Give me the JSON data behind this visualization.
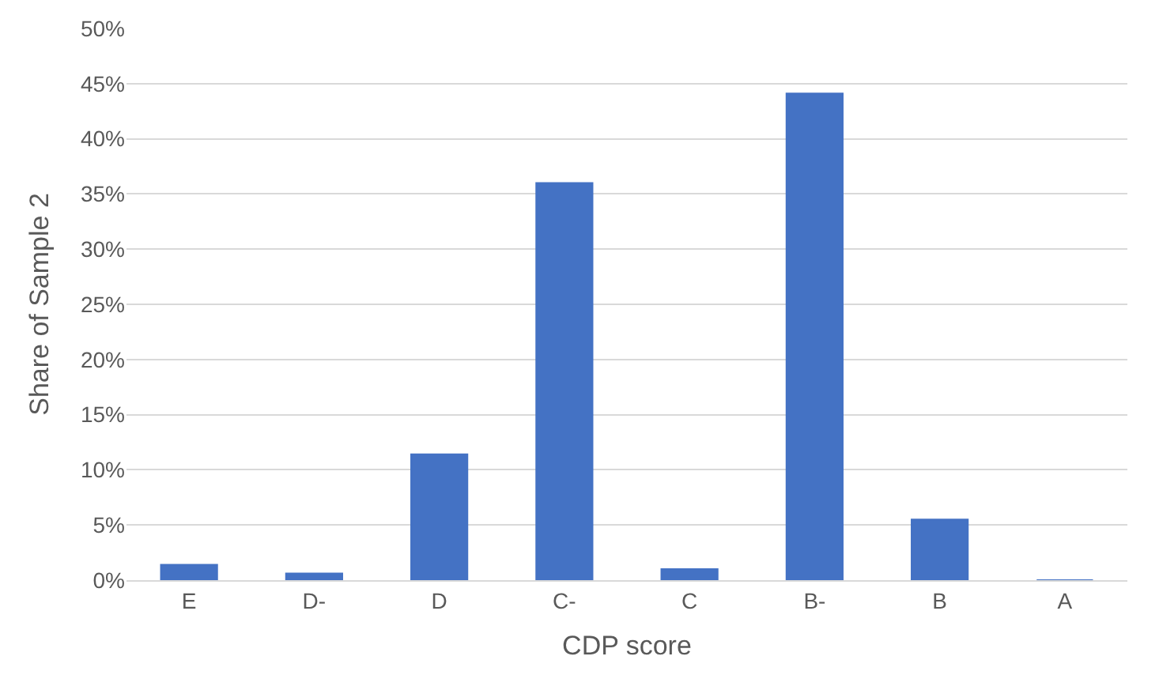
{
  "chart_data": {
    "type": "bar",
    "xlabel": "CDP score",
    "ylabel": "Share of Sample 2",
    "categories": [
      "E",
      "D-",
      "D",
      "C-",
      "C",
      "B-",
      "B",
      "A"
    ],
    "values": [
      1.4,
      0.6,
      11.4,
      36,
      1.0,
      44.1,
      5.5,
      0
    ],
    "color": "#4472c4",
    "ylim": [
      0,
      50
    ],
    "yticks": [
      {
        "value": 0,
        "label": "0%"
      },
      {
        "value": 5,
        "label": "5%"
      },
      {
        "value": 10,
        "label": "10%"
      },
      {
        "value": 15,
        "label": "15%"
      },
      {
        "value": 20,
        "label": "20%"
      },
      {
        "value": 25,
        "label": "25%"
      },
      {
        "value": 30,
        "label": "30%"
      },
      {
        "value": 35,
        "label": "35%"
      },
      {
        "value": 40,
        "label": "40%"
      },
      {
        "value": 45,
        "label": "45%"
      },
      {
        "value": 50,
        "label": "50%"
      }
    ],
    "grid": "y"
  }
}
